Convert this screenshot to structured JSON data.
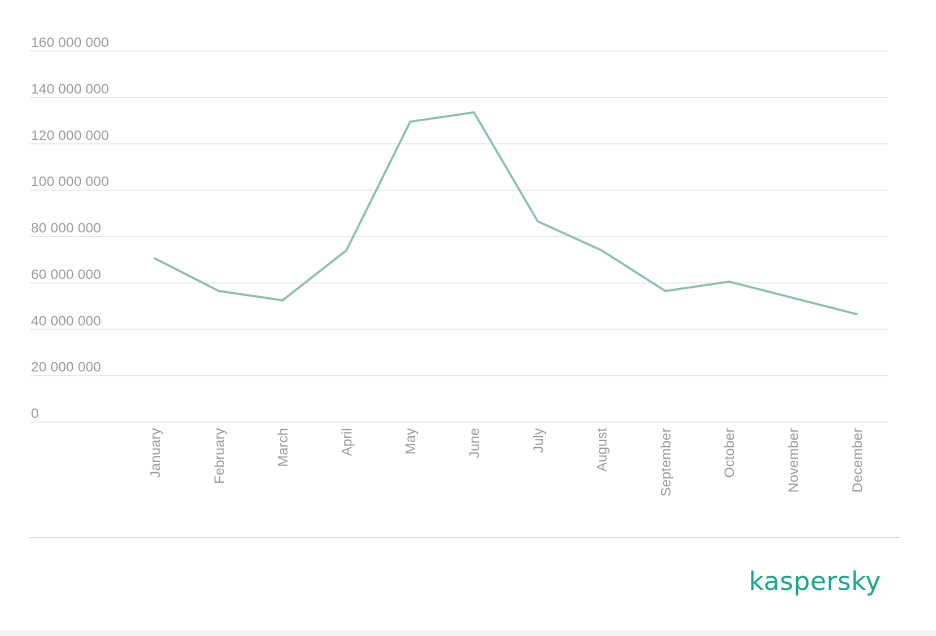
{
  "chart_data": {
    "type": "line",
    "title": "",
    "xlabel": "",
    "ylabel": "",
    "categories": [
      "January",
      "February",
      "March",
      "April",
      "May",
      "June",
      "July",
      "August",
      "September",
      "October",
      "November",
      "December"
    ],
    "series": [
      {
        "values": [
          70500000,
          56500000,
          52500000,
          74000000,
          129500000,
          133500000,
          86500000,
          74000000,
          56500000,
          60500000,
          53500000,
          46500000
        ]
      }
    ],
    "ylim": [
      0,
      160000000
    ],
    "yticks": [
      {
        "value": 0,
        "label": "0"
      },
      {
        "value": 20000000,
        "label": "20 000 000"
      },
      {
        "value": 40000000,
        "label": "40 000 000"
      },
      {
        "value": 60000000,
        "label": "60 000 000"
      },
      {
        "value": 80000000,
        "label": "80 000 000"
      },
      {
        "value": 100000000,
        "label": "100 000 000"
      },
      {
        "value": 120000000,
        "label": "120 000 000"
      },
      {
        "value": 140000000,
        "label": "140 000 000"
      },
      {
        "value": 160000000,
        "label": "160 000 000"
      }
    ],
    "grid": true,
    "colors": {
      "line": "#8cc3a8",
      "grid": "#e6e6e6",
      "tick_text": "#9a9a9a"
    }
  },
  "brand": {
    "logo_text": "kaspersky",
    "color": "#1aa58e"
  }
}
